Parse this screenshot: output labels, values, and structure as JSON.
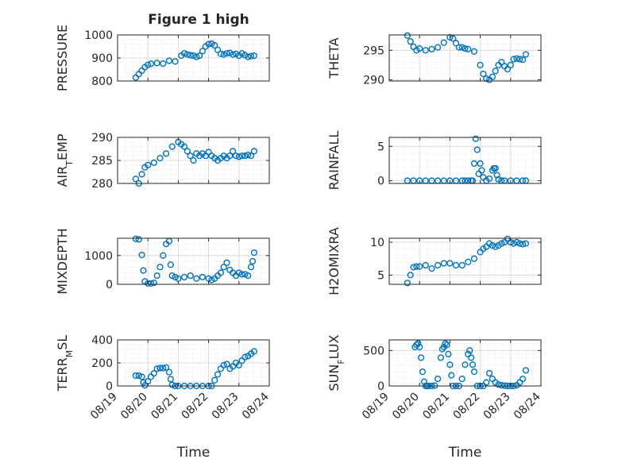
{
  "figure": {
    "title": "Figure 1 high",
    "marker_color": "#0072BD"
  },
  "chart_data": [
    {
      "type": "scatter",
      "title": "Figure 1 high",
      "ylabel": "PRESSURE",
      "xlabel": "",
      "xlim": [
        0,
        5
      ],
      "ylim": [
        800,
        1000
      ],
      "yticks": [
        800,
        900,
        1000
      ],
      "grid": true,
      "minor_grid": true,
      "x": [
        0.6,
        0.7,
        0.8,
        0.9,
        1.0,
        1.1,
        1.3,
        1.5,
        1.7,
        1.9,
        2.1,
        2.2,
        2.3,
        2.4,
        2.5,
        2.6,
        2.7,
        2.8,
        2.9,
        3.0,
        3.1,
        3.2,
        3.3,
        3.4,
        3.5,
        3.6,
        3.7,
        3.8,
        3.9,
        4.0,
        4.1,
        4.2,
        4.3,
        4.4,
        4.5
      ],
      "y": [
        815,
        830,
        845,
        860,
        870,
        875,
        878,
        876,
        888,
        885,
        910,
        920,
        915,
        912,
        910,
        905,
        910,
        930,
        950,
        960,
        962,
        955,
        935,
        918,
        915,
        920,
        922,
        915,
        918,
        910,
        920,
        912,
        905,
        908,
        910
      ]
    },
    {
      "type": "scatter",
      "ylabel": "THETA",
      "xlabel": "",
      "xlim": [
        0,
        5
      ],
      "ylim": [
        289.8,
        297.6
      ],
      "yticks": [
        290,
        295
      ],
      "grid": true,
      "minor_grid": true,
      "x": [
        0.6,
        0.7,
        0.8,
        0.9,
        1.0,
        1.2,
        1.4,
        1.6,
        1.8,
        2.0,
        2.1,
        2.2,
        2.3,
        2.4,
        2.5,
        2.6,
        2.8,
        3.0,
        3.1,
        3.2,
        3.3,
        3.4,
        3.5,
        3.6,
        3.7,
        3.8,
        3.9,
        4.0,
        4.1,
        4.2,
        4.3,
        4.4,
        4.5
      ],
      "y": [
        297.5,
        296.5,
        295.6,
        295.0,
        295.3,
        295.0,
        295.2,
        295.5,
        296.3,
        297.2,
        297.0,
        296.2,
        295.5,
        295.5,
        295.3,
        295.2,
        294.8,
        292.5,
        291.0,
        290.2,
        290.0,
        290.5,
        291.5,
        292.5,
        293.0,
        292.3,
        291.8,
        292.5,
        293.5,
        293.6,
        293.5,
        293.4,
        294.3
      ]
    },
    {
      "type": "scatter",
      "ylabel": "AIR_TEMP",
      "xlabel": "",
      "xlim": [
        0,
        5
      ],
      "ylim": [
        280,
        290
      ],
      "yticks": [
        280,
        285,
        290
      ],
      "grid": true,
      "minor_grid": true,
      "x": [
        0.6,
        0.7,
        0.8,
        0.9,
        1.0,
        1.2,
        1.4,
        1.6,
        1.8,
        2.0,
        2.1,
        2.2,
        2.3,
        2.4,
        2.5,
        2.6,
        2.7,
        2.8,
        2.9,
        3.0,
        3.1,
        3.2,
        3.3,
        3.4,
        3.5,
        3.6,
        3.7,
        3.8,
        3.9,
        4.0,
        4.1,
        4.2,
        4.3,
        4.4,
        4.5
      ],
      "y": [
        281,
        280,
        282,
        283.5,
        284,
        284.5,
        285.5,
        286.5,
        288,
        289,
        288.5,
        288,
        287,
        286,
        285,
        286.5,
        286,
        286.5,
        286,
        286.8,
        286,
        285.5,
        285,
        285.5,
        286,
        285.5,
        286,
        287,
        286,
        285.8,
        286,
        286,
        286.2,
        286,
        287
      ]
    },
    {
      "type": "scatter",
      "ylabel": "RAINFALL",
      "xlabel": "",
      "xlim": [
        0,
        5
      ],
      "ylim": [
        -0.4,
        6.3
      ],
      "yticks": [
        0,
        5
      ],
      "grid": true,
      "minor_grid": true,
      "x": [
        0.6,
        0.8,
        1.0,
        1.2,
        1.4,
        1.6,
        1.8,
        2.0,
        2.2,
        2.4,
        2.5,
        2.6,
        2.7,
        2.75,
        2.8,
        2.85,
        2.9,
        2.95,
        3.0,
        3.05,
        3.1,
        3.2,
        3.3,
        3.4,
        3.45,
        3.5,
        3.55,
        3.6,
        3.7,
        3.8,
        4.0,
        4.2,
        4.4,
        4.5
      ],
      "y": [
        0,
        0,
        0,
        0,
        0,
        0,
        0,
        0,
        0,
        0,
        0,
        0,
        0,
        0,
        2.5,
        6.1,
        4.5,
        1.0,
        2.5,
        1.5,
        0.5,
        0,
        0.3,
        1.5,
        1.8,
        1.8,
        0.8,
        0.2,
        0,
        0,
        0,
        0,
        0,
        0
      ]
    },
    {
      "type": "scatter",
      "ylabel": "MIXDEPTH",
      "xlabel": "",
      "xlim": [
        0,
        5
      ],
      "ylim": [
        0,
        1600
      ],
      "yticks": [
        0,
        1000
      ],
      "grid": true,
      "minor_grid": true,
      "x": [
        0.6,
        0.7,
        0.8,
        0.85,
        0.9,
        1.0,
        1.1,
        1.2,
        1.3,
        1.4,
        1.5,
        1.6,
        1.7,
        1.75,
        1.8,
        1.9,
        2.0,
        2.2,
        2.4,
        2.6,
        2.8,
        3.0,
        3.1,
        3.2,
        3.3,
        3.4,
        3.5,
        3.6,
        3.7,
        3.8,
        3.9,
        4.0,
        4.1,
        4.2,
        4.3,
        4.4,
        4.45,
        4.5
      ],
      "y": [
        1580,
        1560,
        1020,
        480,
        100,
        30,
        30,
        50,
        300,
        600,
        1000,
        1400,
        1500,
        680,
        300,
        250,
        200,
        250,
        300,
        200,
        250,
        200,
        150,
        200,
        300,
        400,
        600,
        750,
        500,
        400,
        300,
        400,
        350,
        350,
        300,
        600,
        800,
        1100
      ]
    },
    {
      "type": "scatter",
      "ylabel": "H2OMIXRA",
      "xlabel": "",
      "xlim": [
        0,
        5
      ],
      "ylim": [
        3.6,
        10.6
      ],
      "yticks": [
        5,
        10
      ],
      "grid": true,
      "minor_grid": true,
      "x": [
        0.6,
        0.7,
        0.8,
        0.9,
        1.0,
        1.2,
        1.4,
        1.6,
        1.8,
        2.0,
        2.2,
        2.4,
        2.6,
        2.8,
        3.0,
        3.1,
        3.2,
        3.3,
        3.4,
        3.5,
        3.6,
        3.7,
        3.8,
        3.9,
        4.0,
        4.1,
        4.2,
        4.3,
        4.4,
        4.5
      ],
      "y": [
        3.8,
        5,
        6.2,
        6.3,
        6.3,
        6.5,
        6.0,
        6.5,
        6.8,
        6.8,
        6.5,
        6.5,
        7.0,
        7.5,
        8.5,
        9.0,
        9.3,
        9.8,
        9.5,
        9.3,
        9.5,
        9.8,
        10.0,
        10.5,
        10.0,
        9.8,
        10.0,
        9.8,
        9.7,
        9.8
      ]
    },
    {
      "type": "scatter",
      "ylabel": "TERR_MSL",
      "xlabel": "Time",
      "xlim": [
        0,
        5
      ],
      "ylim": [
        0,
        400
      ],
      "yticks": [
        0,
        200,
        400
      ],
      "grid": true,
      "minor_grid": true,
      "xticks": [
        "08/19",
        "08/20",
        "08/21",
        "08/22",
        "08/23",
        "08/24"
      ],
      "x": [
        0.6,
        0.7,
        0.8,
        0.85,
        0.9,
        1.0,
        1.1,
        1.2,
        1.3,
        1.4,
        1.5,
        1.6,
        1.7,
        1.75,
        1.8,
        1.9,
        2.0,
        2.2,
        2.4,
        2.6,
        2.8,
        3.0,
        3.1,
        3.2,
        3.3,
        3.4,
        3.5,
        3.6,
        3.7,
        3.8,
        3.9,
        4.0,
        4.1,
        4.2,
        4.3,
        4.4,
        4.5
      ],
      "y": [
        90,
        90,
        80,
        30,
        5,
        40,
        80,
        110,
        150,
        155,
        155,
        160,
        120,
        60,
        10,
        0,
        0,
        0,
        0,
        0,
        0,
        0,
        0,
        50,
        100,
        150,
        180,
        190,
        150,
        170,
        200,
        180,
        220,
        250,
        260,
        280,
        300
      ]
    },
    {
      "type": "scatter",
      "ylabel": "SUN_FLUX",
      "xlabel": "Time",
      "xlim": [
        0,
        5
      ],
      "ylim": [
        0,
        650
      ],
      "yticks": [
        0,
        500
      ],
      "grid": true,
      "minor_grid": true,
      "xticks": [
        "08/19",
        "08/20",
        "08/21",
        "08/22",
        "08/23",
        "08/24"
      ],
      "x": [
        0.85,
        0.9,
        0.95,
        1.0,
        1.05,
        1.1,
        1.15,
        1.2,
        1.25,
        1.3,
        1.4,
        1.5,
        1.6,
        1.7,
        1.75,
        1.8,
        1.85,
        1.9,
        1.95,
        2.0,
        2.05,
        2.1,
        2.2,
        2.3,
        2.4,
        2.5,
        2.6,
        2.65,
        2.7,
        2.75,
        2.8,
        2.9,
        3.0,
        3.1,
        3.2,
        3.3,
        3.4,
        3.5,
        3.6,
        3.7,
        3.8,
        3.9,
        4.0,
        4.1,
        4.2,
        4.3,
        4.4,
        4.5
      ],
      "y": [
        550,
        580,
        600,
        550,
        400,
        200,
        60,
        0,
        0,
        0,
        0,
        5,
        100,
        400,
        520,
        550,
        600,
        580,
        450,
        300,
        150,
        0,
        0,
        0,
        100,
        300,
        450,
        500,
        400,
        300,
        200,
        0,
        0,
        0,
        50,
        180,
        100,
        50,
        20,
        10,
        5,
        0,
        0,
        0,
        10,
        50,
        100,
        220
      ]
    }
  ]
}
